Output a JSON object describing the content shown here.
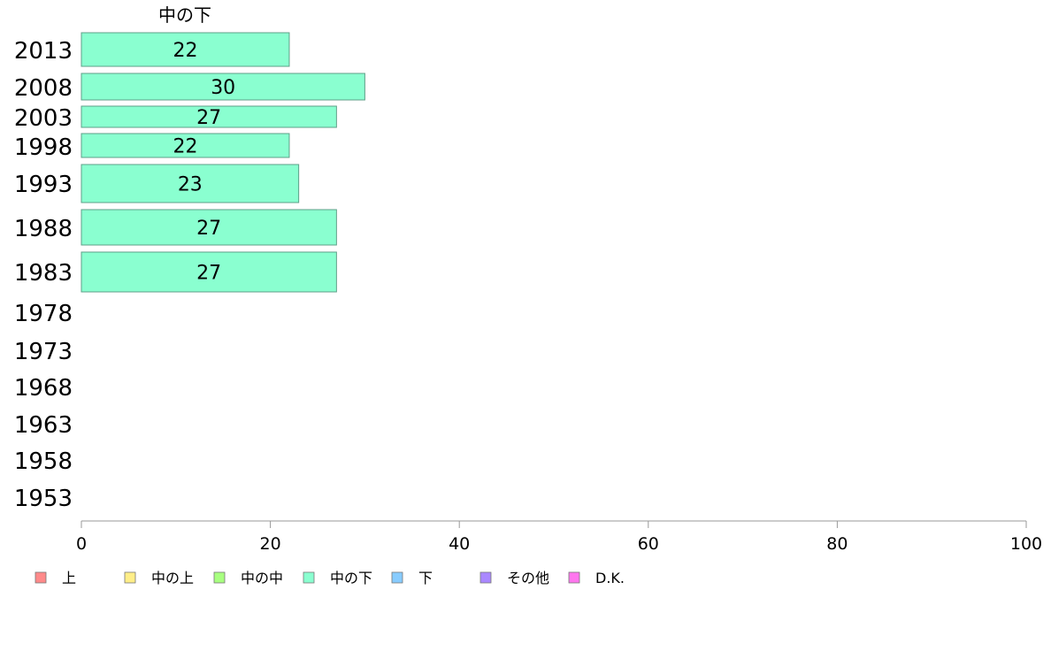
{
  "chart_data": {
    "type": "bar",
    "orientation": "horizontal",
    "series_title": "中の下",
    "categories": [
      "2013",
      "2008",
      "2003",
      "1998",
      "1993",
      "1988",
      "1983",
      "1978",
      "1973",
      "1968",
      "1963",
      "1958",
      "1953"
    ],
    "values": [
      22,
      30,
      27,
      22,
      23,
      27,
      27,
      null,
      null,
      null,
      null,
      null,
      null
    ],
    "value_labels": [
      "22",
      "30",
      "27",
      "22",
      "23",
      "27",
      "27",
      "",
      "",
      "",
      "",
      "",
      ""
    ],
    "bar_color": "#8affd0",
    "xlim": [
      0,
      100
    ],
    "xticks": [
      "0",
      "20",
      "40",
      "60",
      "80",
      "100"
    ],
    "legend": {
      "placement": "bottom",
      "entries": [
        {
          "label": "上",
          "color": "#ff8a8a"
        },
        {
          "label": "中の上",
          "color": "#ffee88"
        },
        {
          "label": "中の中",
          "color": "#a8ff80"
        },
        {
          "label": "中の下",
          "color": "#8affd0"
        },
        {
          "label": "下",
          "color": "#88ccff"
        },
        {
          "label": "その他",
          "color": "#aa88ff"
        },
        {
          "label": "D.K.",
          "color": "#ff77ee"
        }
      ]
    }
  }
}
